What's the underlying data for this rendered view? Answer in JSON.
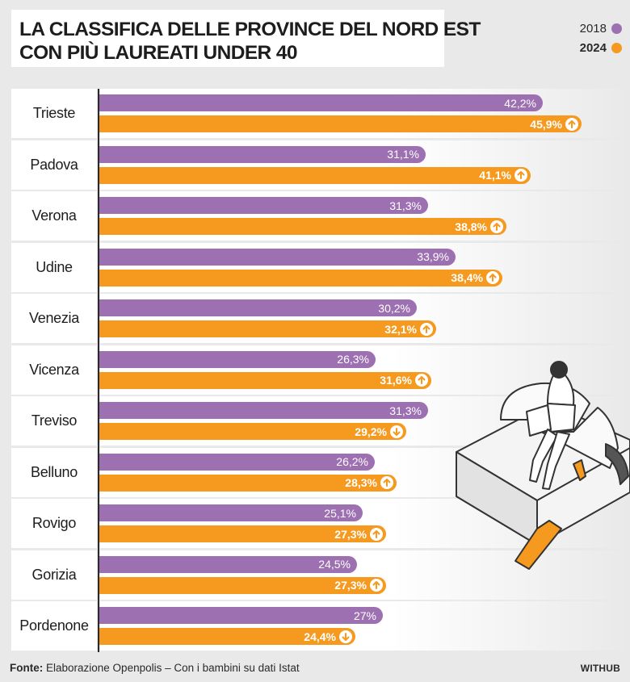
{
  "colors": {
    "s2018": "#9d70b2",
    "s2024": "#f59a1e",
    "background": "#e9e9e9"
  },
  "chart_data": {
    "type": "bar",
    "orientation": "horizontal",
    "title_line1": "LA CLASSIFICA DELLE PROVINCE DEL NORD EST",
    "title_line2": "CON PIÙ LAUREATI UNDER 40",
    "categories": [
      "Trieste",
      "Padova",
      "Verona",
      "Udine",
      "Venezia",
      "Vicenza",
      "Treviso",
      "Belluno",
      "Rovigo",
      "Gorizia",
      "Pordenone"
    ],
    "series": [
      {
        "name": "2018",
        "values": [
          42.2,
          31.1,
          31.3,
          33.9,
          30.2,
          26.3,
          31.3,
          26.2,
          25.1,
          24.5,
          27
        ],
        "labels": [
          "42,2%",
          "31,1%",
          "31,3%",
          "33,9%",
          "30,2%",
          "26,3%",
          "31,3%",
          "26,2%",
          "25,1%",
          "24,5%",
          "27%"
        ]
      },
      {
        "name": "2024",
        "values": [
          45.9,
          41.1,
          38.8,
          38.4,
          32.1,
          31.6,
          29.2,
          28.3,
          27.3,
          27.3,
          24.4
        ],
        "labels": [
          "45,9%",
          "41,1%",
          "38,8%",
          "38,4%",
          "32,1%",
          "31,6%",
          "29,2%",
          "28,3%",
          "27,3%",
          "27,3%",
          "24,4%"
        ],
        "trend": [
          "up",
          "up",
          "up",
          "up",
          "up",
          "up",
          "down",
          "up",
          "up",
          "up",
          "down"
        ]
      }
    ],
    "xlim": [
      0,
      50
    ],
    "grid": false,
    "legend_position": "top-right"
  },
  "footer": {
    "source_label": "Fonte:",
    "source_text": " Elaborazione Openpolis – Con i bambini su dati Istat",
    "brand": "WITHUB"
  }
}
